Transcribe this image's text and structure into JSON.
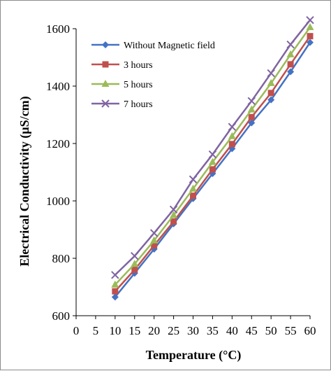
{
  "chart_data": {
    "type": "line",
    "title": "",
    "xlabel": "Temperature (°C)",
    "ylabel": "Electrical Conductivity (µS/cm)",
    "xlim": [
      0,
      60
    ],
    "ylim": [
      600,
      1600
    ],
    "xticks": [
      0,
      5,
      10,
      15,
      20,
      25,
      30,
      35,
      40,
      45,
      50,
      55,
      60
    ],
    "yticks": [
      600,
      800,
      1000,
      1200,
      1400,
      1600
    ],
    "grid": false,
    "legend_position": "top-left",
    "x": [
      10,
      15,
      20,
      25,
      30,
      35,
      40,
      45,
      50,
      55,
      60
    ],
    "series": [
      {
        "name": "Without Magnetic field",
        "marker": "diamond",
        "color": "#4472C4",
        "values": [
          665,
          748,
          832,
          920,
          1008,
          1095,
          1182,
          1272,
          1352,
          1450,
          1552
        ]
      },
      {
        "name": "3 hours",
        "marker": "square",
        "color": "#C0504D",
        "values": [
          685,
          760,
          845,
          928,
          1018,
          1110,
          1198,
          1292,
          1376,
          1476,
          1574
        ]
      },
      {
        "name": "5 hours",
        "marker": "triangle",
        "color": "#9BBB59",
        "values": [
          708,
          780,
          862,
          950,
          1042,
          1135,
          1225,
          1318,
          1410,
          1510,
          1605
        ]
      },
      {
        "name": "7 hours",
        "marker": "x",
        "color": "#8064A2",
        "values": [
          742,
          808,
          888,
          970,
          1075,
          1162,
          1258,
          1348,
          1445,
          1545,
          1630
        ]
      }
    ]
  }
}
